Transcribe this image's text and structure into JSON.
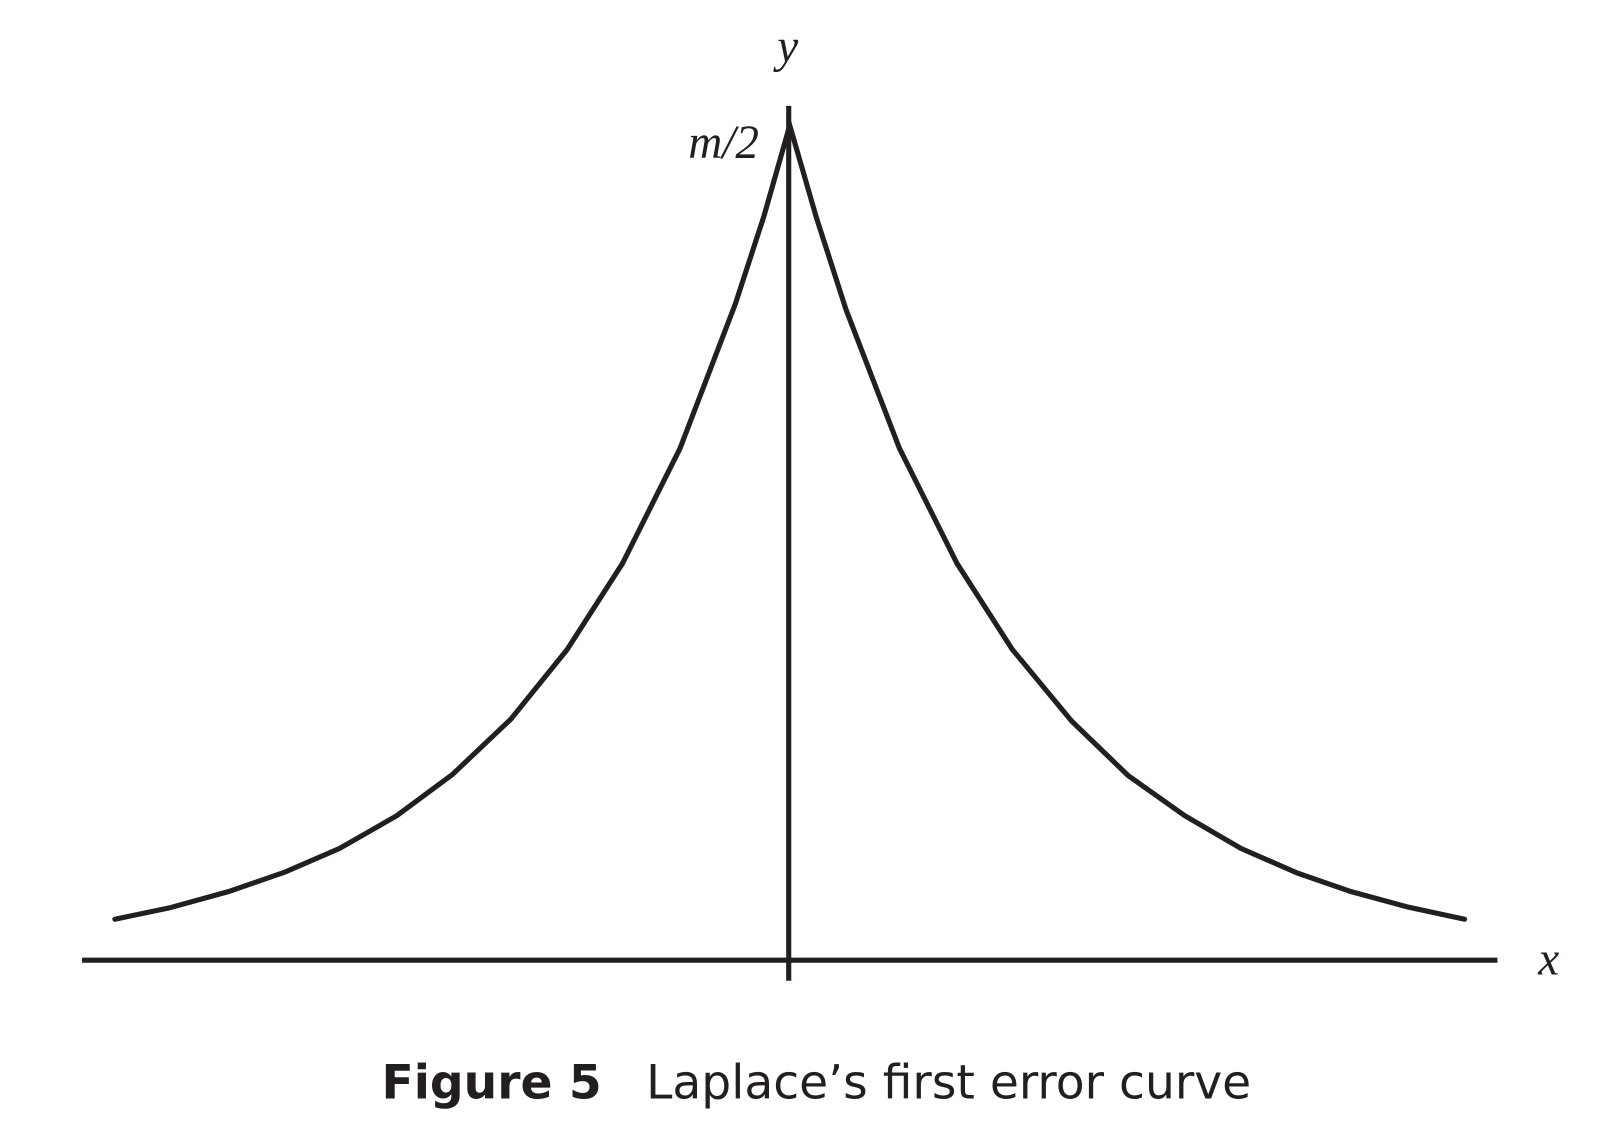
{
  "axes": {
    "y_label": "y",
    "peak_label": "m/2",
    "x_label": "x"
  },
  "caption": {
    "number": "Figure 5",
    "text": "Laplace’s first error curve"
  }
}
